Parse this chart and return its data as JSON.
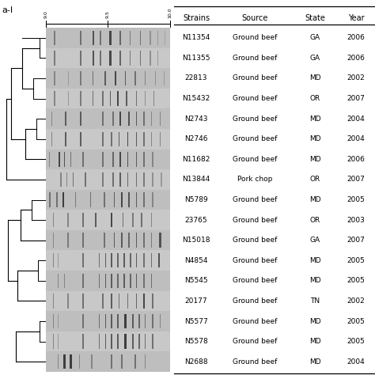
{
  "title": "a-I",
  "strains": [
    "N11354",
    "N11355",
    "22813",
    "N15432",
    "N2743",
    "N2746",
    "N11682",
    "N13844",
    "N5789",
    "23765",
    "N15018",
    "N4854",
    "N5545",
    "20177",
    "N5577",
    "N5578",
    "N2688"
  ],
  "sources": [
    "Ground beef",
    "Ground beef",
    "Ground beef",
    "Ground beef",
    "Ground beef",
    "Ground beef",
    "Ground beef",
    "Pork chop",
    "Ground beef",
    "Ground beef",
    "Ground beef",
    "Ground beef",
    "Ground beef",
    "Ground beef",
    "Ground beef",
    "Ground beef",
    "Ground beef"
  ],
  "states": [
    "GA",
    "GA",
    "MD",
    "OR",
    "MD",
    "MD",
    "MD",
    "OR",
    "MD",
    "OR",
    "GA",
    "MD",
    "MD",
    "TN",
    "MD",
    "MD",
    "MD"
  ],
  "years": [
    2006,
    2006,
    2002,
    2007,
    2004,
    2004,
    2006,
    2007,
    2005,
    2003,
    2007,
    2005,
    2005,
    2002,
    2005,
    2005,
    2004
  ],
  "table_header": [
    "Strains",
    "Source",
    "State",
    "Year"
  ],
  "n_strains": 17,
  "fig_width": 4.74,
  "fig_height": 4.74
}
